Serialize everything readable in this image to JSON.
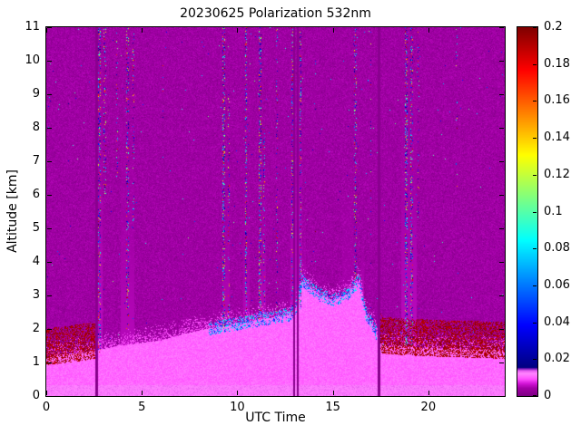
{
  "figure": {
    "title": "20230625 Polarization 532nm"
  },
  "chart_data": {
    "type": "heatmap",
    "title": "20230625 Polarization 532nm",
    "xlabel": "UTC Time",
    "ylabel": "Altitude [km]",
    "xlim": [
      0,
      24
    ],
    "ylim": [
      0,
      11
    ],
    "x_ticks": [
      0,
      5,
      10,
      15,
      20
    ],
    "x_tick_labels": [
      "0",
      "5",
      "10",
      "15",
      "20"
    ],
    "y_ticks": [
      0,
      1,
      2,
      3,
      4,
      5,
      6,
      7,
      8,
      9,
      10,
      11
    ],
    "y_tick_labels": [
      "0",
      "1",
      "2",
      "3",
      "4",
      "5",
      "6",
      "7",
      "8",
      "9",
      "10",
      "11"
    ],
    "colorbar": {
      "min": 0,
      "max": 0.2,
      "ticks": [
        0,
        0.02,
        0.04,
        0.06,
        0.08,
        0.1,
        0.12,
        0.14,
        0.16,
        0.18,
        0.2
      ],
      "tick_labels": [
        "0",
        "0.02",
        "0.04",
        "0.06",
        "0.08",
        "0.1",
        "0.12",
        "0.14",
        "0.16",
        "0.18",
        "0.2"
      ],
      "position": "right"
    },
    "colormap": {
      "description": "magenta/purple for depolarization below ~0.015, then jet (dark blue -> blue -> cyan -> green -> yellow -> orange -> red -> dark red) up to 0.2",
      "background_hex": "#9b009f",
      "aerosol_layer_hex": "#ff50ff",
      "dust_band_hex": "#7f0000"
    },
    "values_summary": {
      "background_depolarization": 0.003,
      "aerosol_layer_depolarization": 0.01,
      "morning_evening_dust_band_depolarization": 0.19,
      "midday_layer_edge_depolarization": 0.06
    },
    "layer_top_km": {
      "t": [
        0,
        2,
        4,
        6,
        8,
        9,
        10,
        11,
        12,
        13,
        13.4,
        14.2,
        15,
        15.8,
        16.4,
        16.7,
        17.1,
        17.6,
        19,
        21,
        24
      ],
      "h": [
        1.15,
        1.3,
        1.5,
        1.65,
        1.95,
        2.05,
        2.15,
        2.25,
        2.35,
        2.45,
        3.45,
        3.05,
        2.85,
        3.05,
        3.45,
        2.5,
        2.1,
        1.5,
        1.45,
        1.4,
        1.35
      ]
    },
    "maroon_bands_t": [
      [
        0,
        2.6
      ],
      [
        17.5,
        24
      ]
    ],
    "cyan_edge_t": [
      8.5,
      17.3
    ],
    "gap_columns": [
      {
        "t": 2.62,
        "w": 0.1
      },
      {
        "t": 12.97,
        "w": 0.12
      },
      {
        "t": 13.17,
        "w": 0.1
      },
      {
        "t": 17.42,
        "w": 0.12
      }
    ],
    "noise_columns": [
      {
        "t": 2.75,
        "w": 0.12,
        "z0": 1.3,
        "z1": 11,
        "d": 0.28
      },
      {
        "t": 3.05,
        "w": 0.1,
        "z0": 6,
        "z1": 11,
        "d": 0.15
      },
      {
        "t": 3.7,
        "w": 0.1,
        "z0": 6.5,
        "z1": 11,
        "d": 0.12
      },
      {
        "t": 4.25,
        "w": 0.12,
        "z0": 2,
        "z1": 11,
        "d": 0.22
      },
      {
        "t": 4.55,
        "w": 0.1,
        "z0": 5,
        "z1": 11,
        "d": 0.12
      },
      {
        "t": 6.1,
        "w": 0.08,
        "z0": 7,
        "z1": 11,
        "d": 0.06
      },
      {
        "t": 9.3,
        "w": 0.14,
        "z0": 2,
        "z1": 11,
        "d": 0.3
      },
      {
        "t": 9.55,
        "w": 0.1,
        "z0": 2.2,
        "z1": 9,
        "d": 0.15
      },
      {
        "t": 10.45,
        "w": 0.12,
        "z0": 2.2,
        "z1": 11,
        "d": 0.28
      },
      {
        "t": 11.2,
        "w": 0.14,
        "z0": 2.3,
        "z1": 11,
        "d": 0.3
      },
      {
        "t": 11.4,
        "w": 0.1,
        "z0": 2.3,
        "z1": 8,
        "d": 0.15
      },
      {
        "t": 12.05,
        "w": 0.1,
        "z0": 2.4,
        "z1": 11,
        "d": 0.1
      },
      {
        "t": 12.9,
        "w": 0.1,
        "z0": 2.5,
        "z1": 11,
        "d": 0.2
      },
      {
        "t": 13.3,
        "w": 0.12,
        "z0": 2.6,
        "z1": 11,
        "d": 0.25
      },
      {
        "t": 14.1,
        "w": 0.08,
        "z0": 3.5,
        "z1": 11,
        "d": 0.05
      },
      {
        "t": 16.2,
        "w": 0.12,
        "z0": 3.4,
        "z1": 11,
        "d": 0.18
      },
      {
        "t": 17.0,
        "w": 0.08,
        "z0": 2.4,
        "z1": 11,
        "d": 0.08
      },
      {
        "t": 18.85,
        "w": 0.14,
        "z0": 1.5,
        "z1": 11,
        "d": 0.3
      },
      {
        "t": 19.15,
        "w": 0.12,
        "z0": 1.5,
        "z1": 11,
        "d": 0.22
      },
      {
        "t": 19.5,
        "w": 0.1,
        "z0": 5,
        "z1": 11,
        "d": 0.1
      },
      {
        "t": 21.5,
        "w": 0.08,
        "z0": 6,
        "z1": 11,
        "d": 0.04
      }
    ],
    "plumes": [
      {
        "t0": 2.6,
        "t1": 2.95,
        "top": 10,
        "v": 0.0058
      },
      {
        "t0": 3.9,
        "t1": 4.6,
        "top": 8,
        "v": 0.0055
      },
      {
        "t0": 9.2,
        "t1": 9.6,
        "top": 7,
        "v": 0.0058
      },
      {
        "t0": 10.3,
        "t1": 10.65,
        "top": 6.5,
        "v": 0.006
      },
      {
        "t0": 10.42,
        "t1": 10.52,
        "top": 4.5,
        "v": 0.0085
      },
      {
        "t0": 11.1,
        "t1": 11.5,
        "top": 7,
        "v": 0.006
      },
      {
        "t0": 11.16,
        "t1": 11.28,
        "top": 5,
        "v": 0.0085
      },
      {
        "t0": 12.8,
        "t1": 13.4,
        "top": 9.5,
        "v": 0.006
      },
      {
        "t0": 13.45,
        "t1": 13.58,
        "top": 5,
        "v": 0.0088
      },
      {
        "t0": 15.5,
        "t1": 16.1,
        "top": 6,
        "v": 0.0055
      },
      {
        "t0": 16.5,
        "t1": 16.63,
        "top": 4.6,
        "v": 0.0092
      },
      {
        "t0": 18.6,
        "t1": 19.4,
        "top": 9.5,
        "v": 0.0058
      }
    ]
  }
}
